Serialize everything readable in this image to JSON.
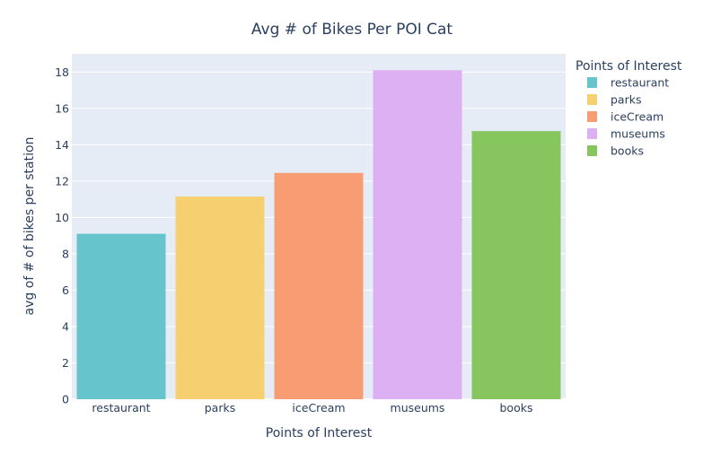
{
  "chart_data": {
    "type": "bar",
    "title": "Avg # of Bikes Per POI Cat",
    "xlabel": "Points of Interest",
    "ylabel": "avg of # of bikes per station",
    "categories": [
      "restaurant",
      "parks",
      "iceCream",
      "museums",
      "books"
    ],
    "values": [
      9.1,
      11.15,
      12.45,
      18.1,
      14.75
    ],
    "colors": [
      "#66c5cc",
      "#f6cf71",
      "#f89c74",
      "#dcb0f2",
      "#87c55f"
    ],
    "ylim": [
      0,
      19
    ],
    "yticks": [
      0,
      2,
      4,
      6,
      8,
      10,
      12,
      14,
      16,
      18
    ],
    "grid": true,
    "plot_background": "#e5ecf6",
    "legend": {
      "title": "Points of Interest",
      "position": "right",
      "entries": [
        "restaurant",
        "parks",
        "iceCream",
        "museums",
        "books"
      ]
    }
  }
}
